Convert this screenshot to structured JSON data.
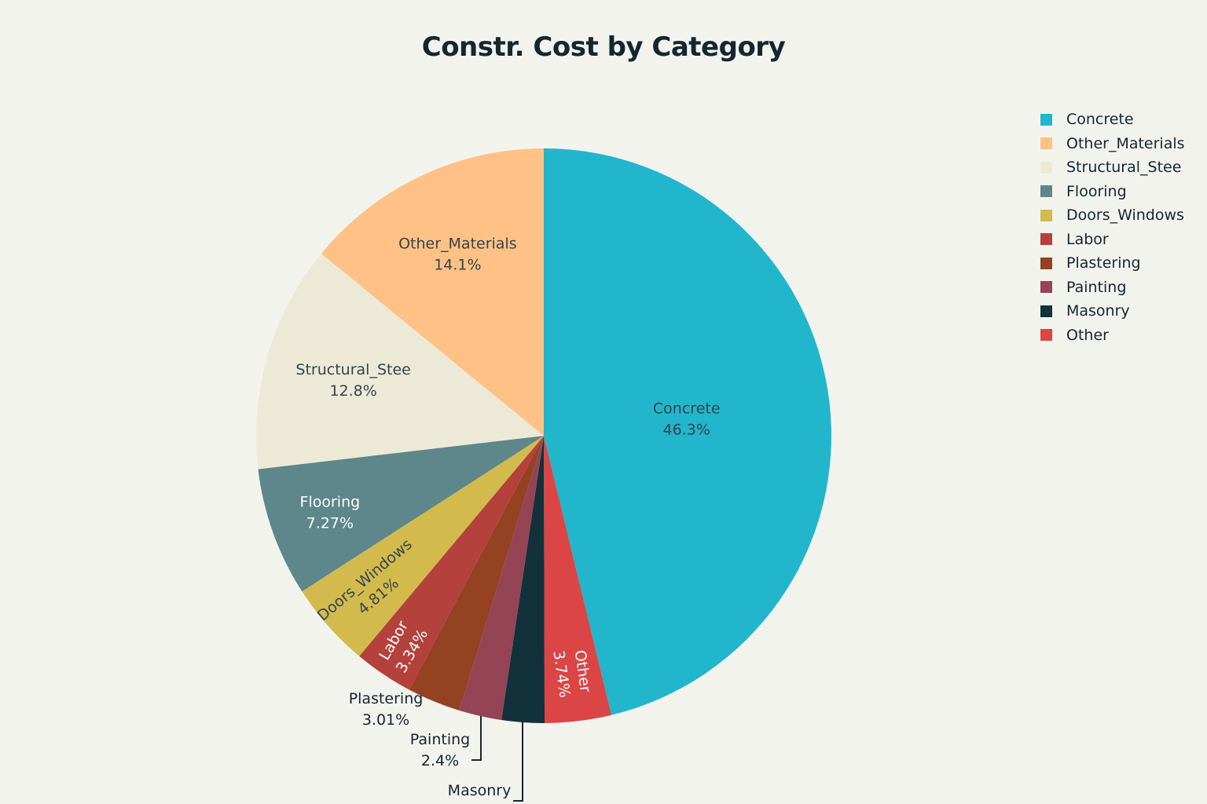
{
  "chart_data": {
    "type": "pie",
    "title": "Constr. Cost by Category",
    "slices": [
      {
        "label": "Concrete",
        "value": 46.3,
        "value_label": "46.3%",
        "color": "#21b6cc",
        "text_color": "#33454d"
      },
      {
        "label": "Other",
        "value": 3.74,
        "value_label": "3.74%",
        "color": "#db4545",
        "text_color": "#ffffff"
      },
      {
        "label": "Masonry",
        "value": 2.4,
        "value_label": "",
        "color": "#13313a",
        "text_color": "#13272f"
      },
      {
        "label": "Painting",
        "value": 2.4,
        "value_label": "2.4%",
        "color": "#944455",
        "text_color": "#13272f"
      },
      {
        "label": "Plastering",
        "value": 3.01,
        "value_label": "3.01%",
        "color": "#944222",
        "text_color": "#13272f"
      },
      {
        "label": "Labor",
        "value": 3.34,
        "value_label": "3.34%",
        "color": "#b4413c",
        "text_color": "#ffffff"
      },
      {
        "label": "Doors_Windows",
        "value": 4.81,
        "value_label": "4.81%",
        "color": "#d2ba4c",
        "text_color": "#33454d"
      },
      {
        "label": "Flooring",
        "value": 7.27,
        "value_label": "7.27%",
        "color": "#5d878b",
        "text_color": "#ffffff"
      },
      {
        "label": "Structural_Stee",
        "value": 12.8,
        "value_label": "12.8%",
        "color": "#ece9d7",
        "text_color": "#33454d"
      },
      {
        "label": "Other_Materials",
        "value": 14.1,
        "value_label": "14.1%",
        "color": "#ffc185",
        "text_color": "#33454d"
      }
    ],
    "legend": {
      "placement": "top-right",
      "entries": [
        {
          "label": "Concrete",
          "color": "#21b6cc"
        },
        {
          "label": "Other_Materials",
          "color": "#ffc185"
        },
        {
          "label": "Structural_Stee",
          "color": "#ece9d7"
        },
        {
          "label": "Flooring",
          "color": "#5d878b"
        },
        {
          "label": "Doors_Windows",
          "color": "#d2ba4c"
        },
        {
          "label": "Labor",
          "color": "#b4413c"
        },
        {
          "label": "Plastering",
          "color": "#944222"
        },
        {
          "label": "Painting",
          "color": "#944455"
        },
        {
          "label": "Masonry",
          "color": "#13313a"
        },
        {
          "label": "Other",
          "color": "#db4545"
        }
      ]
    }
  }
}
